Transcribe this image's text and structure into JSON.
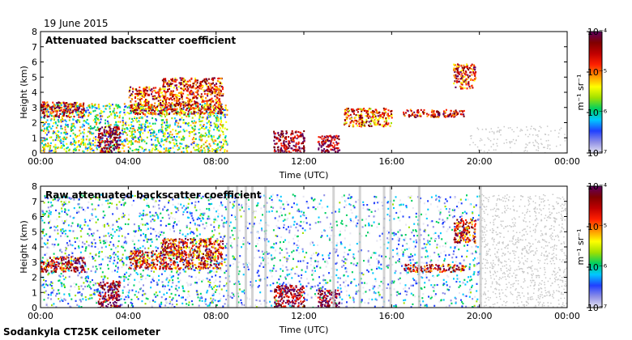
{
  "date": "19 June 2015",
  "footer": "Sodankyla CT25K ceilometer",
  "colors": {
    "frame": "#000000",
    "background": "#ffffff",
    "noise": "#c8c8c8",
    "scale": [
      "#e6e6f2",
      "#8e8ee6",
      "#2040ff",
      "#00c8ff",
      "#00d060",
      "#a0e000",
      "#ffff00",
      "#ff9000",
      "#ff2000",
      "#c00000",
      "#800000",
      "#600060"
    ]
  },
  "chart_data": [
    {
      "type": "heatmap",
      "title": "Attenuated backscatter coefficient",
      "xlabel": "Time (UTC)",
      "ylabel": "Height (km)",
      "xticks": [
        "00:00",
        "04:00",
        "08:00",
        "12:00",
        "16:00",
        "20:00",
        "00:00"
      ],
      "yticks": [
        "0",
        "1",
        "2",
        "3",
        "4",
        "5",
        "6",
        "7",
        "8"
      ],
      "xlim_hours": [
        0,
        24
      ],
      "ylim_km": [
        0,
        8
      ],
      "colorbar": {
        "label": "m⁻¹ sr⁻¹",
        "ticks": [
          "10⁻⁷",
          "10⁻⁶",
          "10⁻⁵",
          "10⁻⁴"
        ],
        "range": [
          1e-07,
          0.0001
        ],
        "scale": "log"
      },
      "features": [
        {
          "name": "boundary layer",
          "t0": 0.0,
          "t1": 8.5,
          "h0": 0.0,
          "h1": 3.3,
          "level": 0.45
        },
        {
          "name": "cloud layer 1",
          "t0": 0.0,
          "t1": 2.0,
          "h0": 2.4,
          "h1": 3.4,
          "level": 0.85
        },
        {
          "name": "cloud layer 2",
          "t0": 4.0,
          "t1": 5.5,
          "h0": 2.6,
          "h1": 4.4,
          "level": 0.8
        },
        {
          "name": "cloud layer 3",
          "t0": 5.5,
          "t1": 8.3,
          "h0": 2.6,
          "h1": 5.0,
          "level": 0.8
        },
        {
          "name": "precipitation",
          "t0": 2.6,
          "t1": 3.6,
          "h0": 0.0,
          "h1": 1.8,
          "level": 0.95
        },
        {
          "name": "precipitation",
          "t0": 10.6,
          "t1": 12.0,
          "h0": 0.0,
          "h1": 1.5,
          "level": 0.95
        },
        {
          "name": "precipitation",
          "t0": 12.6,
          "t1": 13.6,
          "h0": 0.0,
          "h1": 1.2,
          "level": 0.95
        },
        {
          "name": "cloud layer 4",
          "t0": 13.8,
          "t1": 16.0,
          "h0": 1.8,
          "h1": 3.0,
          "level": 0.75
        },
        {
          "name": "cloud layer 5",
          "t0": 16.5,
          "t1": 19.3,
          "h0": 2.4,
          "h1": 2.9,
          "level": 0.85
        },
        {
          "name": "mid-level cloud",
          "t0": 18.8,
          "t1": 19.8,
          "h0": 4.3,
          "h1": 5.9,
          "level": 0.8
        }
      ]
    },
    {
      "type": "heatmap",
      "title": "Raw attenuated backscatter coefficient",
      "xlabel": "Time (UTC)",
      "ylabel": "Height (km)",
      "xticks": [
        "00:00",
        "04:00",
        "08:00",
        "12:00",
        "16:00",
        "20:00",
        "00:00"
      ],
      "yticks": [
        "0",
        "1",
        "2",
        "3",
        "4",
        "5",
        "6",
        "7",
        "8"
      ],
      "xlim_hours": [
        0,
        24
      ],
      "ylim_km": [
        0,
        8
      ],
      "colorbar": {
        "label": "m⁻¹ sr⁻¹",
        "ticks": [
          "10⁻⁷",
          "10⁻⁶",
          "10⁻⁵",
          "10⁻⁴"
        ],
        "range": [
          1e-07,
          0.0001
        ],
        "scale": "log"
      },
      "features": [
        {
          "name": "noisy signal",
          "t0": 0.0,
          "t1": 8.5,
          "h0": 0.0,
          "h1": 7.5,
          "level": 0.25
        },
        {
          "name": "noisy signal",
          "t0": 8.5,
          "t1": 20.0,
          "h0": 0.0,
          "h1": 7.5,
          "level": 0.2
        },
        {
          "name": "cloud layer 1",
          "t0": 0.0,
          "t1": 2.0,
          "h0": 2.4,
          "h1": 3.4,
          "level": 0.85
        },
        {
          "name": "cloud layer 2",
          "t0": 4.0,
          "t1": 5.5,
          "h0": 2.6,
          "h1": 3.8,
          "level": 0.8
        },
        {
          "name": "cloud layer 3",
          "t0": 5.5,
          "t1": 8.3,
          "h0": 2.6,
          "h1": 4.6,
          "level": 0.8
        },
        {
          "name": "precipitation",
          "t0": 2.6,
          "t1": 3.6,
          "h0": 0.0,
          "h1": 1.8,
          "level": 0.95
        },
        {
          "name": "precipitation",
          "t0": 10.6,
          "t1": 12.0,
          "h0": 0.0,
          "h1": 1.5,
          "level": 0.95
        },
        {
          "name": "precipitation",
          "t0": 12.6,
          "t1": 13.6,
          "h0": 0.0,
          "h1": 1.2,
          "level": 0.95
        },
        {
          "name": "cloud layer 5",
          "t0": 16.5,
          "t1": 19.3,
          "h0": 2.4,
          "h1": 2.9,
          "level": 0.85
        },
        {
          "name": "mid-level cloud",
          "t0": 18.8,
          "t1": 19.8,
          "h0": 4.3,
          "h1": 5.9,
          "level": 0.8
        }
      ]
    }
  ]
}
